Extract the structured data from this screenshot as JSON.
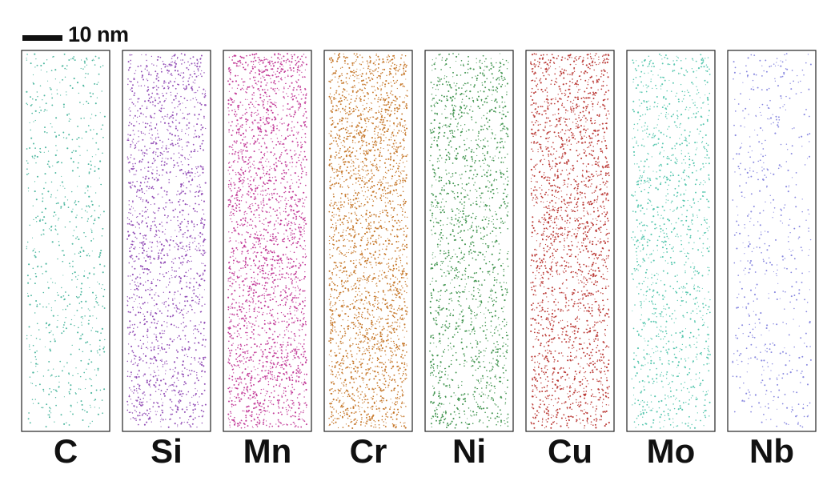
{
  "scale_bar": {
    "label": "10 nm"
  },
  "panels": [
    {
      "element": "C",
      "color": "#26a88a",
      "density": 0.22
    },
    {
      "element": "Si",
      "color": "#8a3fb0",
      "density": 0.62
    },
    {
      "element": "Mn",
      "color": "#c23a97",
      "density": 0.9
    },
    {
      "element": "Cr",
      "color": "#c77a2e",
      "density": 0.98
    },
    {
      "element": "Ni",
      "color": "#2e8a3e",
      "density": 0.58
    },
    {
      "element": "Cu",
      "color": "#b8322e",
      "density": 0.8
    },
    {
      "element": "Mo",
      "color": "#3fbfa3",
      "density": 0.42
    },
    {
      "element": "Nb",
      "color": "#6a6ad8",
      "density": 0.16
    }
  ]
}
